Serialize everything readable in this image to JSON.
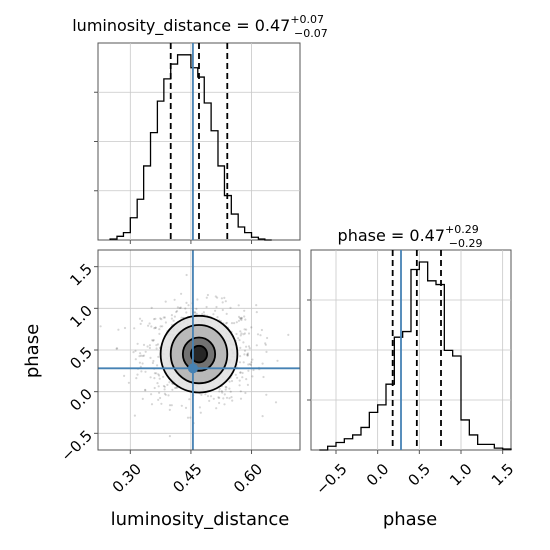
{
  "figure": {
    "parameters": [
      "luminosity_distance",
      "phase"
    ],
    "truth_color": "#4682b4",
    "hist_color": "#000000"
  },
  "chart_data": [
    {
      "type": "histogram",
      "panel": "luminosity_distance-marginal",
      "title": {
        "param": "luminosity_distance",
        "median": "0.47",
        "plus": "+0.07",
        "minus": "−0.07"
      },
      "xlim": [
        0.22,
        0.72
      ],
      "bin_edges": [
        0.25,
        0.267,
        0.283,
        0.3,
        0.317,
        0.333,
        0.35,
        0.367,
        0.383,
        0.4,
        0.417,
        0.433,
        0.45,
        0.467,
        0.483,
        0.5,
        0.517,
        0.533,
        0.55,
        0.567,
        0.583,
        0.6,
        0.617,
        0.633,
        0.65
      ],
      "counts": [
        0.005,
        0.02,
        0.04,
        0.12,
        0.22,
        0.4,
        0.58,
        0.75,
        0.87,
        0.95,
        1.0,
        1.0,
        0.93,
        0.88,
        0.74,
        0.59,
        0.4,
        0.24,
        0.14,
        0.07,
        0.04,
        0.015,
        0.005,
        0.0
      ],
      "quantiles": [
        0.4,
        0.47,
        0.54
      ],
      "truth": 0.455,
      "grid": true
    },
    {
      "type": "histogram",
      "panel": "phase-marginal",
      "title": {
        "param": "phase",
        "median": "0.47",
        "plus": "+0.29",
        "minus": "−0.29"
      },
      "xlim": [
        -0.8,
        1.6
      ],
      "xticks": [
        "−0.5",
        "0.0",
        "0.5",
        "1.0",
        "1.5"
      ],
      "xtick_values": [
        -0.5,
        0.0,
        0.5,
        1.0,
        1.5
      ],
      "xlabel": "phase",
      "bin_edges": [
        -0.7,
        -0.6,
        -0.5,
        -0.4,
        -0.3,
        -0.2,
        -0.1,
        0.0,
        0.1,
        0.2,
        0.3,
        0.4,
        0.5,
        0.6,
        0.7,
        0.8,
        0.9,
        1.0,
        1.1,
        1.2,
        1.3,
        1.4,
        1.5,
        1.6
      ],
      "counts": [
        0.0,
        0.02,
        0.04,
        0.06,
        0.08,
        0.12,
        0.2,
        0.24,
        0.35,
        0.6,
        0.63,
        0.96,
        1.0,
        0.9,
        0.88,
        0.53,
        0.5,
        0.16,
        0.08,
        0.03,
        0.03,
        0.01,
        0.005
      ],
      "quantiles": [
        0.18,
        0.47,
        0.76
      ],
      "truth": 0.28,
      "grid": true
    },
    {
      "type": "scatter",
      "panel": "joint-2d",
      "xlim": [
        0.22,
        0.72
      ],
      "ylim": [
        -0.7,
        1.7
      ],
      "xticks": [
        "0.30",
        "0.45",
        "0.60"
      ],
      "xtick_values": [
        0.3,
        0.45,
        0.6
      ],
      "yticks": [
        "−0.5",
        "0.0",
        "0.5",
        "1.0",
        "1.5"
      ],
      "ytick_values": [
        -0.5,
        0.0,
        0.5,
        1.0,
        1.5
      ],
      "xlabel": "luminosity_distance",
      "ylabel": "phase",
      "center": [
        0.47,
        0.45
      ],
      "spread": [
        0.07,
        0.29
      ],
      "contour_levels": [
        {
          "rx": 0.02,
          "ry": 0.1,
          "fill": "#1e1e1e"
        },
        {
          "rx": 0.04,
          "ry": 0.2,
          "fill": "#6a6a6a"
        },
        {
          "rx": 0.07,
          "ry": 0.35,
          "fill": "#b4b4b4"
        },
        {
          "rx": 0.095,
          "ry": 0.46,
          "fill": "#e2e2e2"
        }
      ],
      "truth": [
        0.455,
        0.28
      ],
      "grid": true
    }
  ]
}
